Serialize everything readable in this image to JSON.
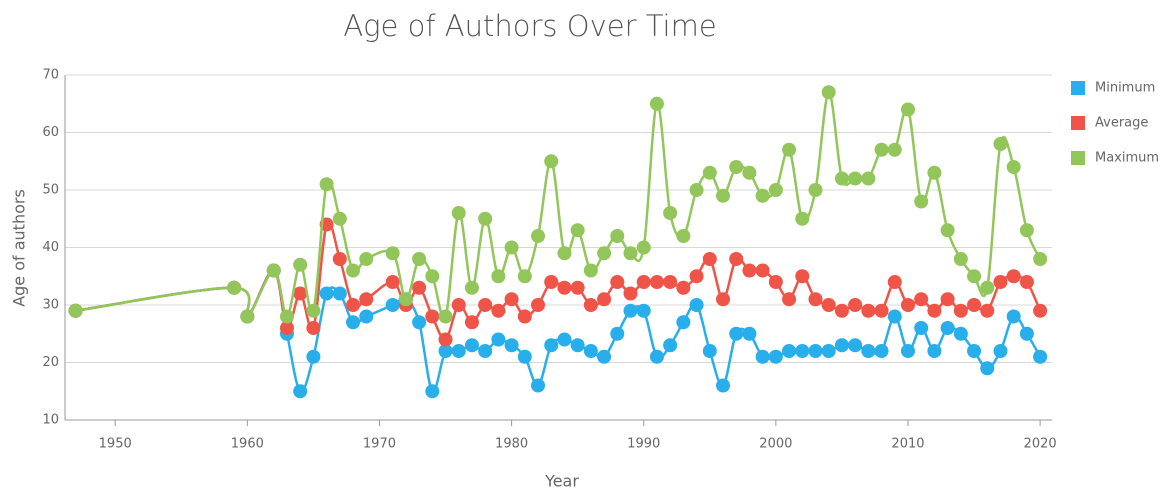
{
  "chart_data": {
    "type": "line",
    "title": "Age of Authors Over Time",
    "xlabel": "Year",
    "ylabel": "Age of authors",
    "x": [
      1947,
      1959,
      1960,
      1962,
      1963,
      1964,
      1965,
      1966,
      1967,
      1968,
      1969,
      1971,
      1972,
      1973,
      1974,
      1975,
      1976,
      1977,
      1978,
      1979,
      1980,
      1981,
      1982,
      1983,
      1984,
      1985,
      1986,
      1987,
      1988,
      1989,
      1990,
      1991,
      1992,
      1993,
      1994,
      1995,
      1996,
      1997,
      1998,
      1999,
      2000,
      2001,
      2002,
      2003,
      2004,
      2005,
      2006,
      2007,
      2008,
      2009,
      2010,
      2011,
      2012,
      2013,
      2014,
      2015,
      2016,
      2017,
      2018,
      2019,
      2020
    ],
    "series": [
      {
        "name": "Minimum",
        "color": "#29aeec",
        "values": [
          29,
          33,
          28,
          36,
          25,
          15,
          21,
          32,
          32,
          27,
          28,
          30,
          31,
          27,
          15,
          22,
          22,
          23,
          22,
          24,
          23,
          21,
          16,
          23,
          24,
          23,
          22,
          21,
          25,
          29,
          29,
          21,
          23,
          27,
          30,
          22,
          16,
          25,
          25,
          21,
          21,
          22,
          22,
          22,
          22,
          23,
          23,
          22,
          22,
          28,
          22,
          26,
          22,
          26,
          25,
          22,
          19,
          22,
          28,
          25,
          21
        ]
      },
      {
        "name": "Average",
        "color": "#ef5448",
        "values": [
          29,
          33,
          28,
          36,
          26,
          32,
          26,
          44,
          38,
          30,
          31,
          34,
          30,
          33,
          28,
          24,
          30,
          27,
          30,
          29,
          31,
          28,
          30,
          34,
          33,
          33,
          30,
          31,
          34,
          32,
          34,
          34,
          34,
          33,
          35,
          38,
          31,
          38,
          36,
          36,
          34,
          31,
          35,
          31,
          30,
          29,
          30,
          29,
          29,
          34,
          30,
          31,
          29,
          31,
          29,
          30,
          29,
          34,
          35,
          34,
          29
        ]
      },
      {
        "name": "Maximum",
        "color": "#93c65a",
        "values": [
          29,
          33,
          28,
          36,
          28,
          37,
          29,
          51,
          45,
          36,
          38,
          39,
          31,
          38,
          35,
          28,
          46,
          33,
          45,
          35,
          40,
          35,
          42,
          55,
          39,
          43,
          36,
          39,
          42,
          39,
          40,
          65,
          46,
          42,
          50,
          53,
          49,
          54,
          53,
          49,
          50,
          57,
          45,
          50,
          67,
          52,
          52,
          52,
          57,
          57,
          64,
          48,
          53,
          43,
          38,
          35,
          33,
          58,
          54,
          43,
          38
        ]
      }
    ],
    "xlim": [
      1946.2,
      2020.9
    ],
    "xticks": [
      1950,
      1960,
      1970,
      1980,
      1990,
      2000,
      2010,
      2020
    ],
    "ylim": [
      10,
      70
    ],
    "yticks": [
      10,
      20,
      30,
      40,
      50,
      60,
      70
    ],
    "grid": true,
    "legend": "right"
  }
}
